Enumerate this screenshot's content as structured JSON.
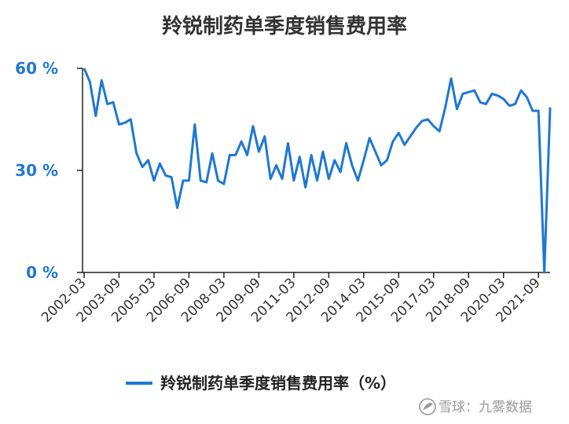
{
  "chart_data": {
    "type": "line",
    "title": "羚锐制药单季度销售费用率",
    "xlabel": "",
    "ylabel": "",
    "ylim": [
      0,
      60
    ],
    "grid": false,
    "legend_position": "bottom",
    "colors": {
      "line": "#1f78d1",
      "axis": "#222222",
      "ytick": "#1f78d1"
    },
    "y_ticks": [
      {
        "value": 0,
        "label": "0 %"
      },
      {
        "value": 30,
        "label": "30 %"
      },
      {
        "value": 60,
        "label": "60 %"
      }
    ],
    "x_tick_labels": [
      "2002-03",
      "2003-09",
      "2005-03",
      "2006-09",
      "2008-03",
      "2009-09",
      "2011-03",
      "2012-09",
      "2014-03",
      "2015-09",
      "2017-03",
      "2018-09",
      "2020-03",
      "2021-09"
    ],
    "x": [
      "2002-03",
      "2002-06",
      "2002-09",
      "2002-12",
      "2003-03",
      "2003-06",
      "2003-09",
      "2003-12",
      "2004-03",
      "2004-06",
      "2004-09",
      "2004-12",
      "2005-03",
      "2005-06",
      "2005-09",
      "2005-12",
      "2006-03",
      "2006-06",
      "2006-09",
      "2006-12",
      "2007-03",
      "2007-06",
      "2007-09",
      "2007-12",
      "2008-03",
      "2008-06",
      "2008-09",
      "2008-12",
      "2009-03",
      "2009-06",
      "2009-09",
      "2009-12",
      "2010-03",
      "2010-06",
      "2010-09",
      "2010-12",
      "2011-03",
      "2011-06",
      "2011-09",
      "2011-12",
      "2012-03",
      "2012-06",
      "2012-09",
      "2012-12",
      "2013-03",
      "2013-06",
      "2013-09",
      "2013-12",
      "2014-03",
      "2014-06",
      "2014-09",
      "2014-12",
      "2015-03",
      "2015-06",
      "2015-09",
      "2015-12",
      "2016-03",
      "2016-06",
      "2016-09",
      "2016-12",
      "2017-03",
      "2017-06",
      "2017-09",
      "2017-12",
      "2018-03",
      "2018-06",
      "2018-09",
      "2018-12",
      "2019-03",
      "2019-06",
      "2019-09",
      "2019-12",
      "2020-03",
      "2020-06",
      "2020-09",
      "2020-12",
      "2021-03",
      "2021-06",
      "2021-09",
      "2021-12",
      "2022-03"
    ],
    "series": [
      {
        "name": "羚锐制药单季度销售费用率（%）",
        "values": [
          60,
          56,
          46,
          56.5,
          49.5,
          50,
          43.5,
          44,
          45,
          35,
          31,
          33,
          27,
          32,
          28.5,
          28,
          19,
          27,
          27,
          43.5,
          27,
          26.5,
          35,
          27,
          26,
          34.5,
          34.5,
          38.5,
          34.5,
          43,
          35.5,
          40,
          27.5,
          31.5,
          27.5,
          38,
          27,
          34,
          25,
          34.5,
          27,
          35.5,
          27.5,
          33,
          29.5,
          38,
          31.5,
          27,
          33,
          39.5,
          35.5,
          31.5,
          33,
          38.5,
          41,
          37.5,
          40,
          42.5,
          44.5,
          45,
          43,
          41.5,
          48.5,
          57,
          48,
          52.5,
          53,
          53.5,
          50,
          49.5,
          52.5,
          52,
          51,
          49,
          49.5,
          53.5,
          51.5,
          47.5,
          47.5,
          0,
          48.5
        ]
      }
    ]
  },
  "watermark": {
    "text": "雪球：九雾数据"
  }
}
